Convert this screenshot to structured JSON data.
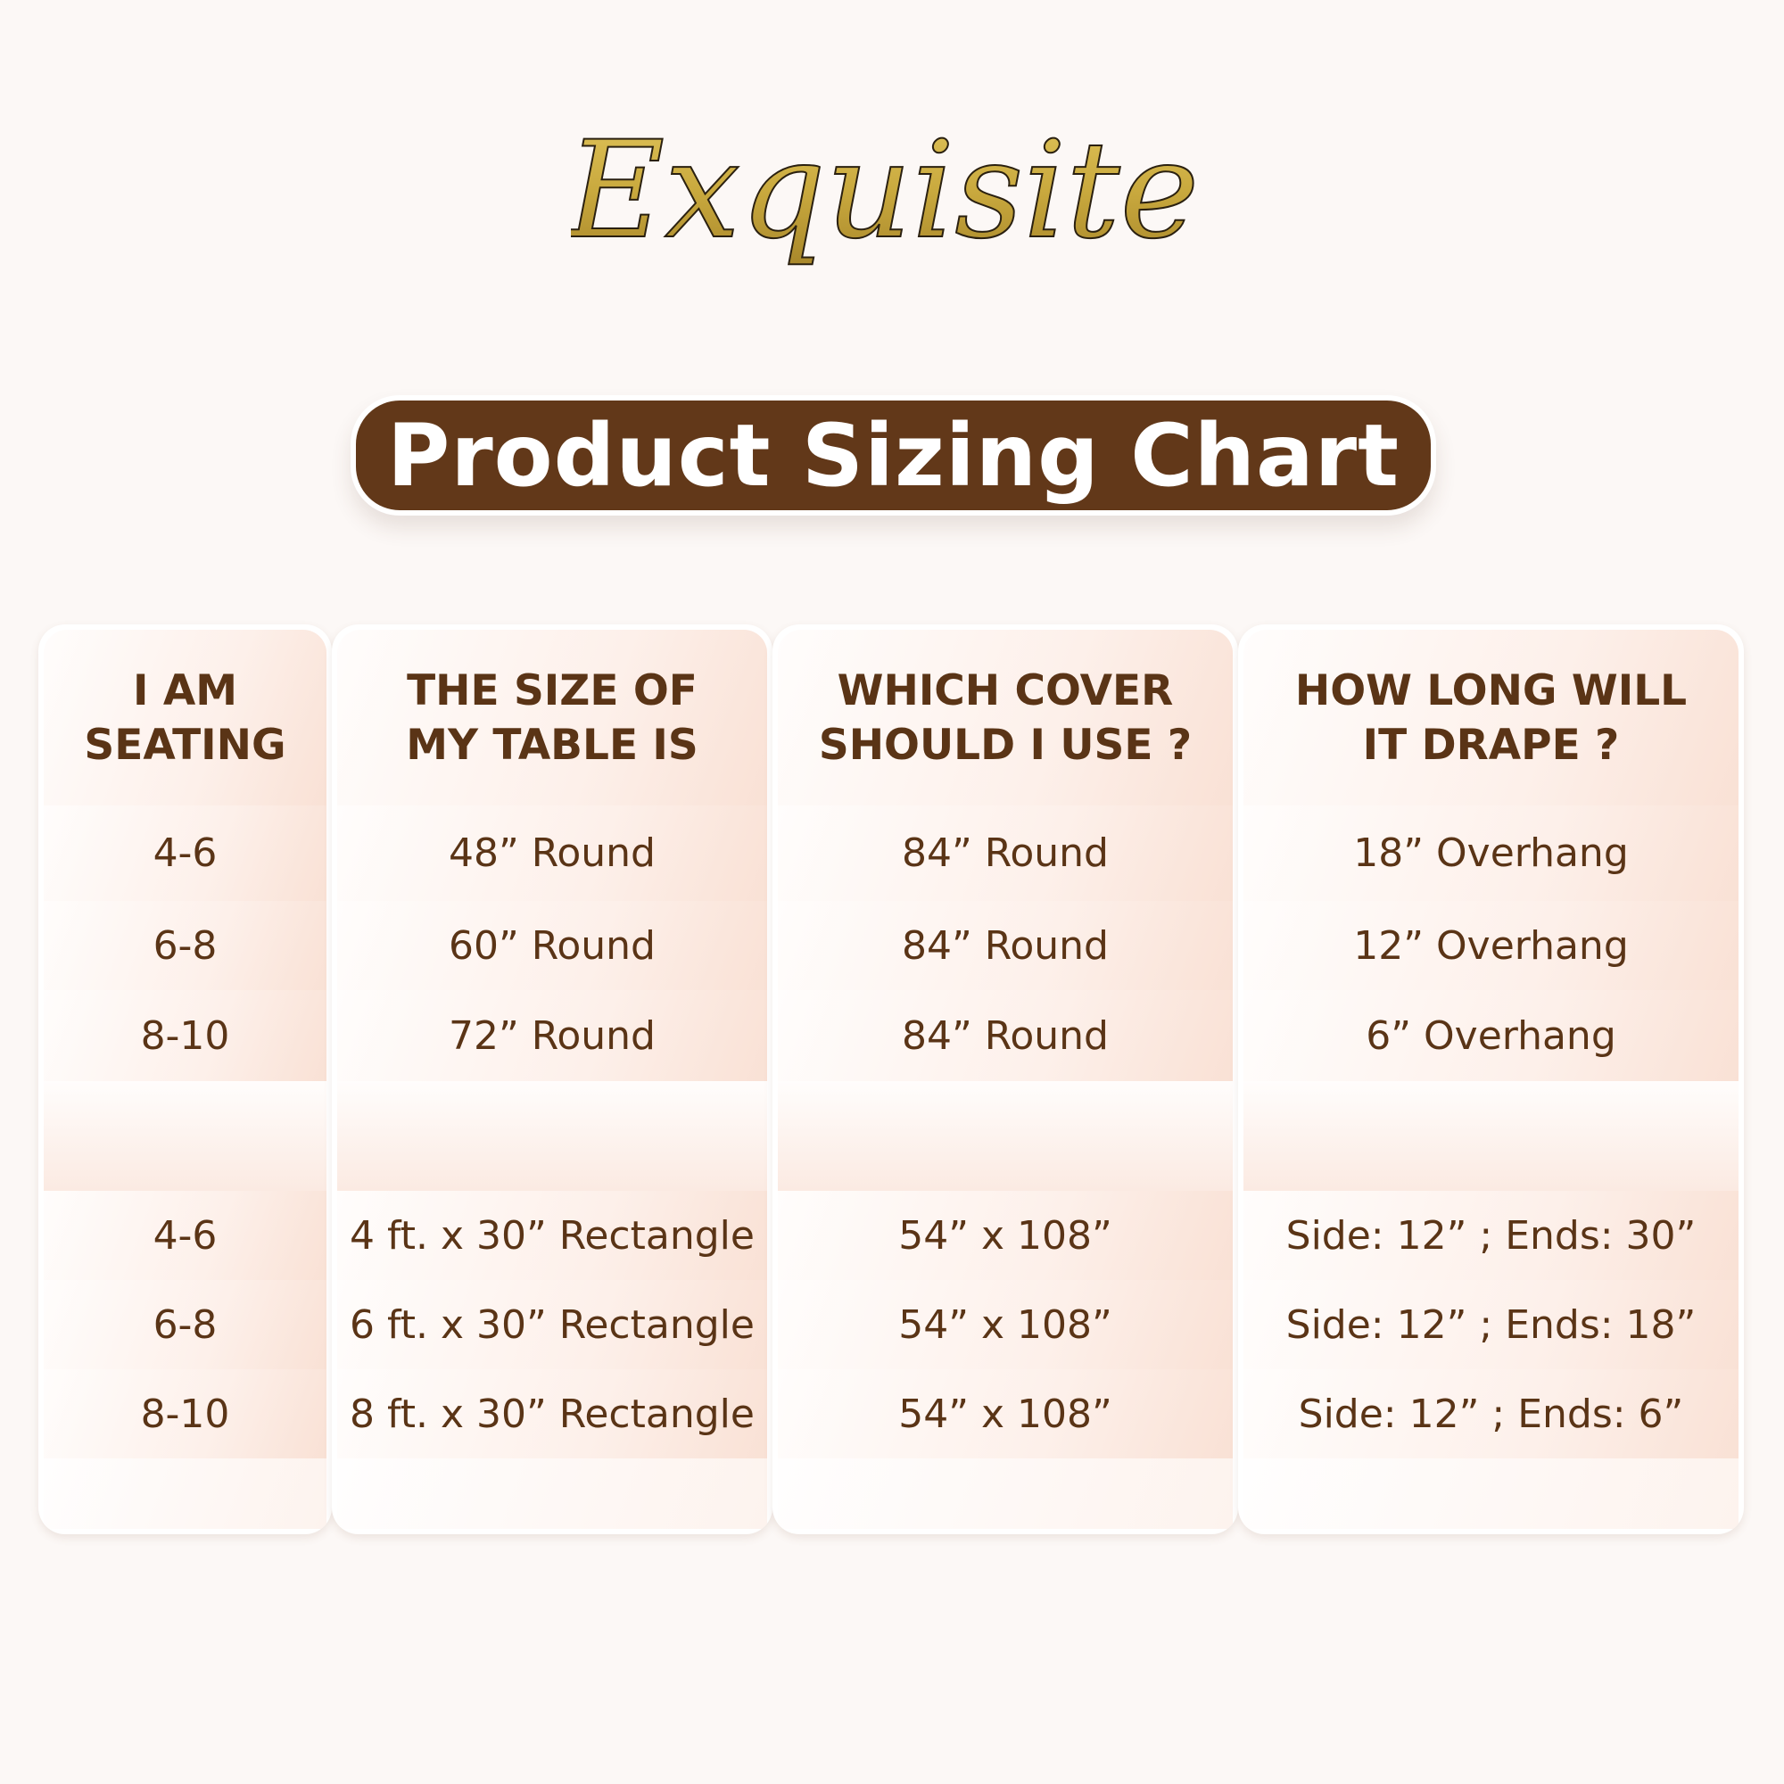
{
  "brand": {
    "logo_text": "Exquisite",
    "logo_color": "#c9a93e"
  },
  "title": "Product Sizing Chart",
  "colors": {
    "title_bg": "#623819",
    "text": "#5a3416",
    "cell_tint": "#f9e1d5"
  },
  "table": {
    "headers": [
      [
        "I AM",
        "SEATING"
      ],
      [
        "THE SIZE OF",
        "MY TABLE IS"
      ],
      [
        "WHICH COVER",
        "SHOULD I USE ?"
      ],
      [
        "HOW LONG WILL",
        "IT DRAPE ?"
      ]
    ],
    "round_rows": [
      [
        "4-6",
        "48” Round",
        "84” Round",
        "18” Overhang"
      ],
      [
        "6-8",
        "60” Round",
        "84” Round",
        "12” Overhang"
      ],
      [
        "8-10",
        "72” Round",
        "84” Round",
        "6” Overhang"
      ]
    ],
    "rect_rows": [
      [
        "4-6",
        "4 ft. x 30” Rectangle",
        "54” x 108”",
        "Side: 12” ; Ends: 30”"
      ],
      [
        "6-8",
        "6 ft. x 30” Rectangle",
        "54” x 108”",
        "Side: 12” ; Ends: 18”"
      ],
      [
        "8-10",
        "8 ft. x 30” Rectangle",
        "54” x 108”",
        "Side: 12” ; Ends: 6”"
      ]
    ]
  }
}
